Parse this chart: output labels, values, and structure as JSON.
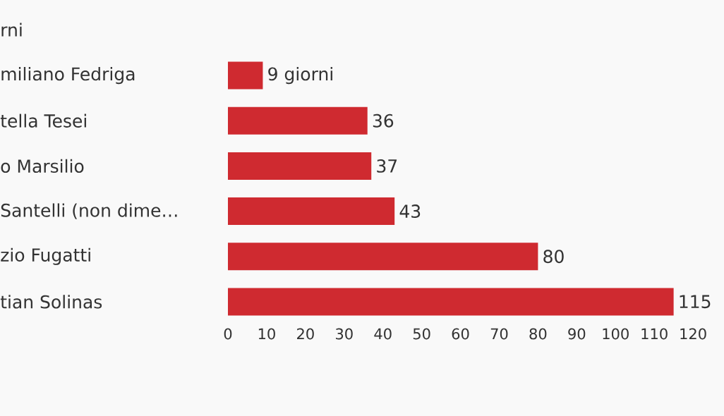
{
  "chart_data": {
    "type": "bar",
    "orientation": "horizontal",
    "title": "rni",
    "categories": [
      "miliano Fedriga",
      "tella Tesei",
      "o Marsilio",
      "Santelli (non dime…",
      "zio Fugatti",
      "tian Solinas"
    ],
    "values": [
      9,
      36,
      37,
      43,
      80,
      115
    ],
    "value_labels": [
      "9 giorni",
      "36",
      "37",
      "43",
      "80",
      "115"
    ],
    "color": "#cf2a30",
    "xlim": [
      0,
      128
    ],
    "xticks": [
      0,
      10,
      20,
      30,
      40,
      50,
      60,
      70,
      80,
      90,
      100,
      110,
      120
    ]
  }
}
